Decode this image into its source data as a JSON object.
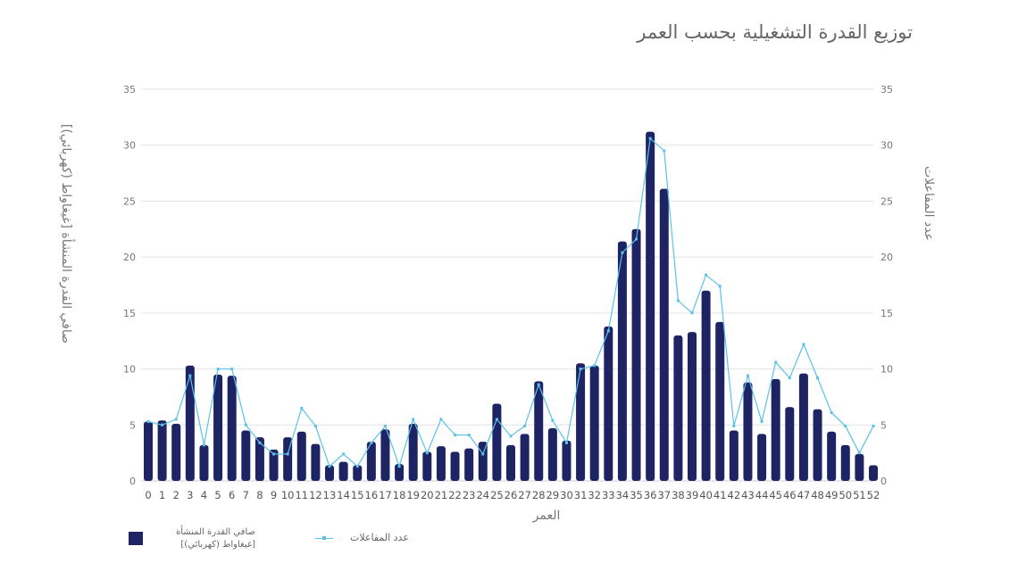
{
  "chart_data": {
    "type": "bar",
    "title": "توزيع القدرة التشغيلية بحسب العمر",
    "xlabel": "العمر",
    "ylabel_left": "صافي القدرة المنشأة [غيغاواط (كهربائي)]",
    "ylabel_right": "عدد المفاعلات",
    "ylim_left": [
      0,
      35
    ],
    "ylim_right": [
      0,
      35
    ],
    "yticks": [
      "0",
      "5",
      "10",
      "15",
      "20",
      "25",
      "30",
      "35"
    ],
    "grid": true,
    "legend_position": "bottom-left",
    "categories": [
      "0",
      "1",
      "2",
      "3",
      "4",
      "5",
      "6",
      "7",
      "8",
      "9",
      "10",
      "11",
      "12",
      "13",
      "14",
      "15",
      "16",
      "17",
      "18",
      "19",
      "20",
      "21",
      "22",
      "23",
      "24",
      "25",
      "26",
      "27",
      "28",
      "29",
      "30",
      "31",
      "32",
      "33",
      "34",
      "35",
      "36",
      "37",
      "38",
      "39",
      "40",
      "41",
      "42",
      "43",
      "44",
      "45",
      "46",
      "47",
      "48",
      "49",
      "50",
      "51",
      "52"
    ],
    "series": [
      {
        "name": "صافي القدرة المنشأة [غيغاواط (كهربائي)]",
        "type": "bar",
        "axis": "left",
        "color": "#1e2463",
        "values": [
          5.3,
          5.4,
          5.1,
          10.3,
          3.2,
          9.5,
          9.4,
          4.5,
          3.9,
          2.8,
          3.9,
          4.4,
          3.3,
          1.4,
          1.7,
          1.4,
          3.5,
          4.6,
          1.5,
          5.1,
          2.6,
          3.1,
          2.6,
          2.9,
          3.5,
          6.9,
          3.2,
          4.2,
          8.9,
          4.7,
          3.6,
          10.5,
          10.3,
          13.8,
          21.4,
          22.5,
          31.2,
          26.1,
          13.0,
          13.3,
          17.0,
          14.2,
          4.5,
          8.8,
          4.2,
          9.1,
          6.6,
          9.6,
          6.4,
          4.4,
          3.2,
          2.4,
          1.4
        ]
      },
      {
        "name": "عدد المفاعلات",
        "type": "line",
        "axis": "right",
        "color": "#5bc2ec",
        "values": [
          5.3,
          5.0,
          5.5,
          9.4,
          3.2,
          10.0,
          10.0,
          5.0,
          3.4,
          2.4,
          2.4,
          6.5,
          4.9,
          1.3,
          2.4,
          1.3,
          3.4,
          4.9,
          1.3,
          5.5,
          2.5,
          5.5,
          4.1,
          4.1,
          2.4,
          5.5,
          4.0,
          4.9,
          8.6,
          5.4,
          3.4,
          10.0,
          10.3,
          13.4,
          20.4,
          21.6,
          30.6,
          29.5,
          16.1,
          15.0,
          18.4,
          17.4,
          4.9,
          9.4,
          5.3,
          10.6,
          9.2,
          12.2,
          9.2,
          6.1,
          4.9,
          2.5,
          4.9
        ]
      }
    ]
  },
  "legend": {
    "bar_label_line1": "صافي القدرة المنشأة",
    "bar_label_line2": "[غيغاواط (كهربائي)]",
    "line_label": "عدد المفاعلات"
  }
}
